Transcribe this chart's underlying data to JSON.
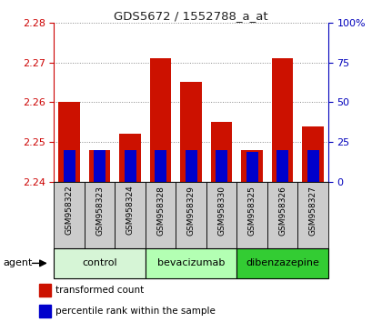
{
  "title": "GDS5672 / 1552788_a_at",
  "samples": [
    "GSM958322",
    "GSM958323",
    "GSM958324",
    "GSM958328",
    "GSM958329",
    "GSM958330",
    "GSM958325",
    "GSM958326",
    "GSM958327"
  ],
  "transformed_counts": [
    2.26,
    2.248,
    2.252,
    2.271,
    2.265,
    2.255,
    2.248,
    2.271,
    2.254
  ],
  "percentile_ranks": [
    20,
    20,
    20,
    20,
    20,
    20,
    19,
    20,
    20
  ],
  "groups": [
    {
      "label": "control",
      "indices": [
        0,
        1,
        2
      ],
      "color": "#d6f5d6"
    },
    {
      "label": "bevacizumab",
      "indices": [
        3,
        4,
        5
      ],
      "color": "#b3ffb3"
    },
    {
      "label": "dibenzazepine",
      "indices": [
        6,
        7,
        8
      ],
      "color": "#33cc33"
    }
  ],
  "ylim_left": [
    2.24,
    2.28
  ],
  "yticks_left": [
    2.24,
    2.25,
    2.26,
    2.27,
    2.28
  ],
  "ylim_right": [
    0,
    100
  ],
  "yticks_right": [
    0,
    25,
    50,
    75,
    100
  ],
  "yticklabels_right": [
    "0",
    "25",
    "50",
    "75",
    "100%"
  ],
  "bar_color_red": "#cc1100",
  "bar_color_blue": "#0000cc",
  "bar_width": 0.7,
  "baseline": 2.24,
  "left_tick_color": "#cc0000",
  "right_tick_color": "#0000bb",
  "legend_items": [
    {
      "label": "transformed count",
      "color": "#cc1100"
    },
    {
      "label": "percentile rank within the sample",
      "color": "#0000cc"
    }
  ],
  "agent_label": "agent",
  "sample_cell_color": "#cccccc",
  "title_color": "#222222"
}
